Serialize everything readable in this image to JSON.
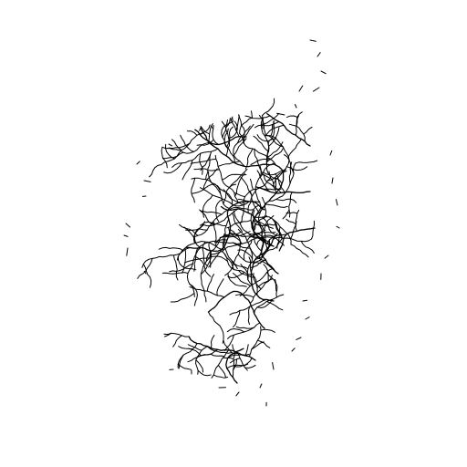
{
  "map": {
    "type": "river-network",
    "background_color": "#ffffff",
    "stroke_color": "#000000",
    "labels": []
  }
}
